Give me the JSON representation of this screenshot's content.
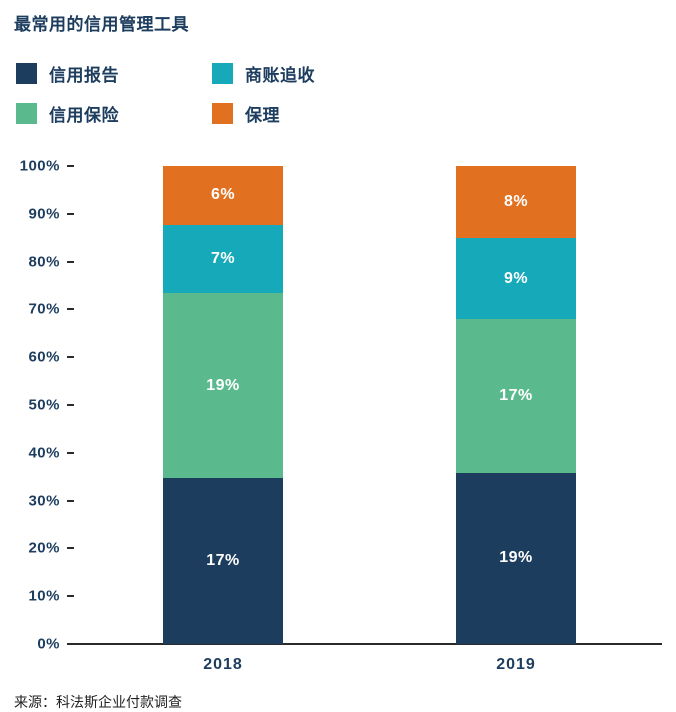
{
  "title": "最常用的信用管理工具",
  "source": "来源：科法斯企业付款调查",
  "colors": {
    "navy": "#1d3d5e",
    "teal": "#16a9b9",
    "green": "#5bba8d",
    "orange": "#e17020",
    "axis": "#2a2a2a"
  },
  "legend": [
    {
      "label": "信用报告",
      "color": "#1d3d5e"
    },
    {
      "label": "商账追收",
      "color": "#16a9b9"
    },
    {
      "label": "信用保险",
      "color": "#5bba8d"
    },
    {
      "label": "保理",
      "color": "#e17020"
    }
  ],
  "chart_data": {
    "type": "bar",
    "stacked": true,
    "normalized_to_100": true,
    "title": "最常用的信用管理工具",
    "categories": [
      "2018",
      "2019"
    ],
    "series": [
      {
        "name": "信用报告",
        "color": "#1d3d5e",
        "values": [
          17,
          19
        ]
      },
      {
        "name": "信用保险",
        "color": "#5bba8d",
        "values": [
          19,
          17
        ]
      },
      {
        "name": "商账追收",
        "color": "#16a9b9",
        "values": [
          7,
          9
        ]
      },
      {
        "name": "保理",
        "color": "#e17020",
        "values": [
          6,
          8
        ]
      }
    ],
    "y_ticks": [
      "100%",
      "90%",
      "80%",
      "70%",
      "60%",
      "50%",
      "40%",
      "30%",
      "20%",
      "10%",
      "0%"
    ],
    "ylim": [
      0,
      100
    ],
    "value_label_format": "{v}%",
    "legend_position": "top-left",
    "grid": false
  }
}
